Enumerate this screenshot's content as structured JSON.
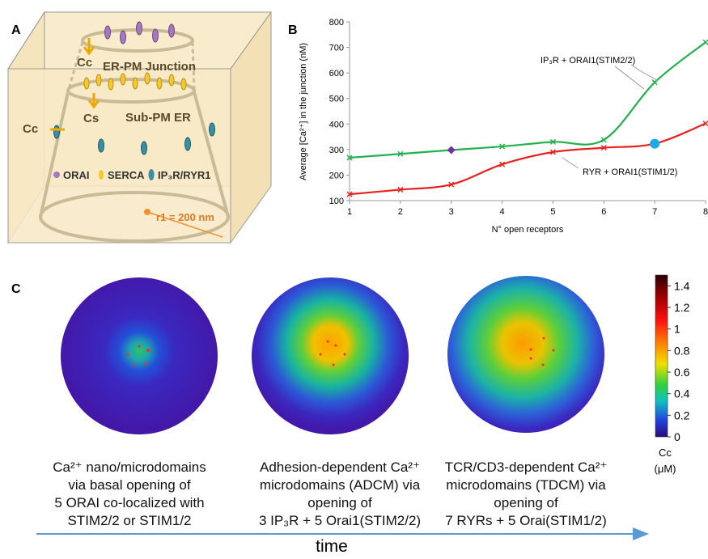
{
  "panel_a": {
    "label": "A",
    "cc_top": "Cc",
    "junction": "ER-PM Junction",
    "cs": "Cs",
    "sub_pm": "Sub-PM ER",
    "cc_side": "Cc",
    "legend": [
      "ORAI",
      "SERCA",
      "IP₃R/RYR1"
    ],
    "radius": "r1 = 200 nm"
  },
  "chart_data": {
    "type": "line",
    "label": "B",
    "x": [
      1,
      2,
      3,
      4,
      5,
      6,
      7,
      8
    ],
    "series": [
      {
        "name": "IP₃R + ORAI1(STIM2/2)",
        "color": "#22b14c",
        "values": [
          268,
          283,
          298,
          312,
          330,
          338,
          563,
          720
        ],
        "highlight": {
          "index": 2,
          "color": "#7030a0",
          "marker": "diamond"
        }
      },
      {
        "name": "RYR + ORAI1(STIM1/2)",
        "color": "#e8231f",
        "values": [
          125,
          143,
          163,
          242,
          290,
          307,
          323,
          402
        ],
        "highlight": {
          "index": 6,
          "color": "#1fa8e8",
          "marker": "circle"
        }
      }
    ],
    "xlabel": "N° open receptors",
    "ylabel": "Average [Ca²⁺] in the junction (nM)",
    "xlim": [
      1,
      8
    ],
    "xticks": [
      1,
      2,
      3,
      4,
      5,
      6,
      7,
      8
    ],
    "ylim": [
      100,
      800
    ],
    "yticks": [
      100,
      200,
      300,
      400,
      500,
      600,
      700,
      800
    ],
    "grid": false
  },
  "panel_c": {
    "label": "C",
    "colorbar": {
      "ticks": [
        0,
        0.2,
        0.4,
        0.6,
        0.8,
        1,
        1.2,
        1.4
      ],
      "lim": [
        0,
        1.5
      ],
      "title": [
        "Cc",
        "(μM)"
      ]
    },
    "captions": [
      [
        "Ca²⁺ nano/microdomains",
        "via basal opening of",
        "5 ORAI co-localized with",
        "STIM2/2 or STIM1/2"
      ],
      [
        "Adhesion-dependent Ca²⁺",
        "microdomains (ADCM) via",
        "opening of",
        "3 IP₃R + 5 Orai1(STIM2/2)"
      ],
      [
        "TCR/CD3-dependent Ca²⁺",
        "microdomains (TDCM) via",
        "opening of",
        "7 RYRs + 5 Orai(STIM1/2)"
      ]
    ],
    "axis": "time"
  }
}
